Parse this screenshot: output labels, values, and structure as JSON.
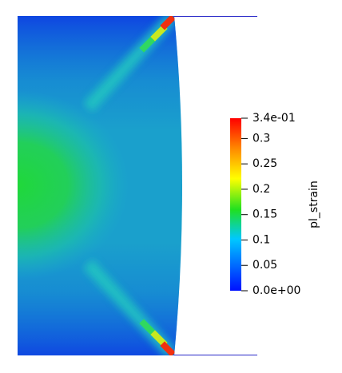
{
  "colorbar": {
    "title": "pl_strain",
    "lim": [
      0,
      0.34
    ],
    "ticks": [
      {
        "value": 0.34,
        "label": "3.4e-01"
      },
      0.3,
      0.25,
      0.2,
      0.15,
      0.1,
      0.05,
      {
        "value": 0,
        "label": "0.0e+00"
      }
    ]
  }
}
